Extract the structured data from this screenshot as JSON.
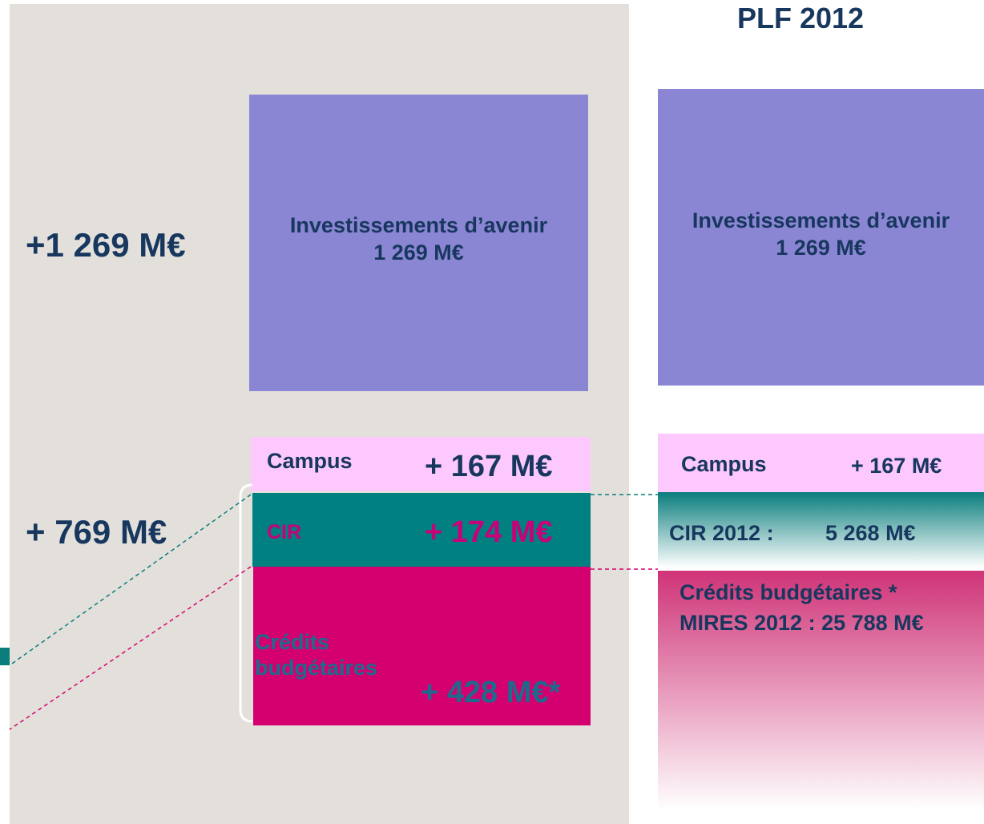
{
  "header": {
    "title": "PLF 2012"
  },
  "left": {
    "total_top": "+1 269 M€",
    "total_bottom": "+ 769 M€",
    "blocks": [
      {
        "label": "Investissements d’avenir",
        "value": "1 269 M€"
      },
      {
        "label": "Campus",
        "value": "+ 167 M€"
      },
      {
        "label": "CIR",
        "value": "+ 174 M€"
      },
      {
        "label": "Crédits budgétaires",
        "value": "+ 428 M€*"
      }
    ]
  },
  "right": {
    "blocks": [
      {
        "label": "Investissements d’avenir",
        "value": "1 269 M€"
      },
      {
        "label": "Campus",
        "value": "+ 167 M€"
      },
      {
        "label": "CIR 2012 :",
        "value": "5 268 M€"
      },
      {
        "label": "Crédits budgétaires *",
        "value": "MIRES 2012 : 25 788 M€"
      }
    ]
  }
}
